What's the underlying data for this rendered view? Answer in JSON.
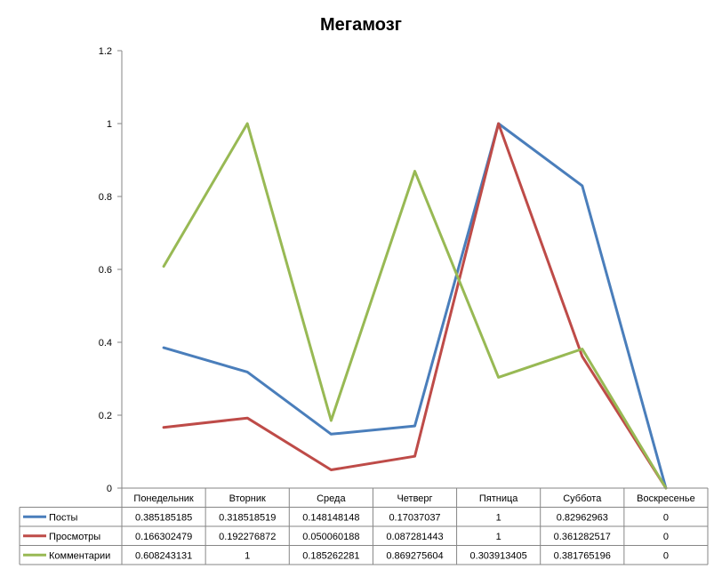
{
  "chart_data": {
    "type": "line",
    "title": "Мегамозг",
    "xlabel": "",
    "ylabel": "",
    "ylim": [
      0,
      1.2
    ],
    "ytick_step": 0.2,
    "yticks": [
      "0",
      "0.2",
      "0.4",
      "0.6",
      "0.8",
      "1",
      "1.2"
    ],
    "grid": false,
    "legend": "data-table",
    "categories": [
      "Понедельник",
      "Вторник",
      "Среда",
      "Четверг",
      "Пятница",
      "Суббота",
      "Воскресенье"
    ],
    "series": [
      {
        "name": "Посты",
        "color": "#4a7ebb",
        "values": [
          0.385185185,
          0.318518519,
          0.148148148,
          0.17037037,
          1,
          0.82962963,
          0
        ],
        "labels": [
          "0.385185185",
          "0.318518519",
          "0.148148148",
          "0.17037037",
          "1",
          "0.82962963",
          "0"
        ]
      },
      {
        "name": "Просмотры",
        "color": "#be4b48",
        "values": [
          0.166302479,
          0.192276872,
          0.050060188,
          0.087281443,
          1,
          0.361282517,
          0
        ],
        "labels": [
          "0.166302479",
          "0.192276872",
          "0.050060188",
          "0.087281443",
          "1",
          "0.361282517",
          "0"
        ]
      },
      {
        "name": "Комментарии",
        "color": "#98b954",
        "values": [
          0.608243131,
          1,
          0.185262281,
          0.869275604,
          0.303913405,
          0.381765196,
          0
        ],
        "labels": [
          "0.608243131",
          "1",
          "0.185262281",
          "0.869275604",
          "0.303913405",
          "0.381765196",
          "0"
        ]
      }
    ]
  }
}
